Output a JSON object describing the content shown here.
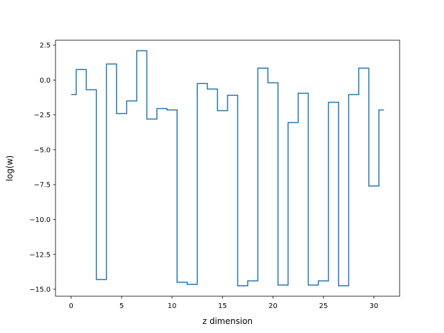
{
  "chart_data": {
    "type": "line",
    "drawstyle": "steps-mid",
    "title": "",
    "xlabel": "z dimension",
    "ylabel": "log(w)",
    "xlim": [
      -1.55,
      32.55
    ],
    "ylim": [
      -15.5,
      2.85
    ],
    "xticks": [
      0,
      5,
      10,
      15,
      20,
      25,
      30
    ],
    "xtick_labels": [
      "0",
      "5",
      "10",
      "15",
      "20",
      "25",
      "30"
    ],
    "yticks": [
      2.5,
      0.0,
      -2.5,
      -5.0,
      -7.5,
      -10.0,
      -12.5,
      -15.0
    ],
    "ytick_labels": [
      "2.5",
      "0.0",
      "−2.5",
      "−5.0",
      "−7.5",
      "−10.0",
      "−12.5",
      "−15.0"
    ],
    "grid": false,
    "legend": "none",
    "series": [
      {
        "color": "#1f77b4",
        "x": [
          0,
          1,
          2,
          3,
          4,
          5,
          6,
          7,
          8,
          9,
          10,
          11,
          12,
          13,
          14,
          15,
          16,
          17,
          18,
          19,
          20,
          21,
          22,
          23,
          24,
          25,
          26,
          27,
          28,
          29,
          30,
          31
        ],
        "values": [
          -1.05,
          0.75,
          -0.7,
          -14.3,
          1.15,
          -2.4,
          -1.5,
          2.1,
          -2.8,
          -2.05,
          -2.15,
          -14.5,
          -14.65,
          -0.25,
          -0.65,
          -2.2,
          -1.1,
          -14.75,
          -14.4,
          0.85,
          -0.2,
          -14.7,
          -3.05,
          -0.95,
          -14.7,
          -14.4,
          -1.6,
          -14.75,
          -1.05,
          0.85,
          -7.6,
          -2.15
        ]
      }
    ]
  }
}
